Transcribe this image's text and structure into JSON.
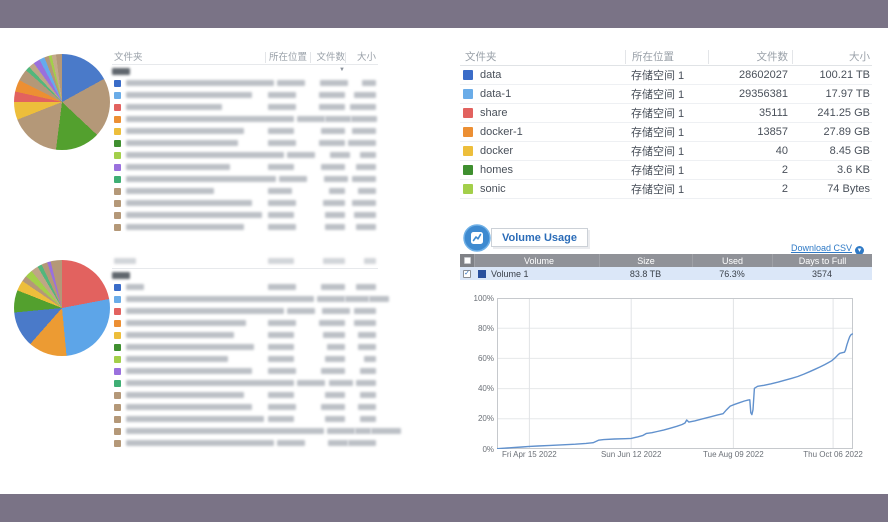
{
  "page": {
    "background": "#7a7386",
    "canvas": "#ffffff"
  },
  "left": {
    "table_top": {
      "headers": {
        "folder": "文件夹",
        "location": "所在位置",
        "files": "文件数",
        "size": "大小"
      },
      "sorted_by": "文件数",
      "sort_dir": "desc",
      "redacted": true,
      "rows": [
        {
          "icon_color": "#3a6cc8",
          "name_w": 148,
          "loc_w": 28,
          "files_w": 28,
          "size_w": 14
        },
        {
          "icon_color": "#6aace8",
          "name_w": 126,
          "loc_w": 28,
          "files_w": 26,
          "size_w": 22
        },
        {
          "icon_color": "#e2625f",
          "name_w": 96,
          "loc_w": 28,
          "files_w": 26,
          "size_w": 26
        },
        {
          "icon_color": "#ec8f33",
          "name_w": 168,
          "loc_w": 28,
          "files_w": 26,
          "size_w": 26
        },
        {
          "icon_color": "#edbe3b",
          "name_w": 118,
          "loc_w": 26,
          "files_w": 24,
          "size_w": 24
        },
        {
          "icon_color": "#3f8f2f",
          "name_w": 112,
          "loc_w": 28,
          "files_w": 26,
          "size_w": 28
        },
        {
          "icon_color": "#a3cf4a",
          "name_w": 158,
          "loc_w": 28,
          "files_w": 20,
          "size_w": 16
        },
        {
          "icon_color": "#9a70dd",
          "name_w": 104,
          "loc_w": 26,
          "files_w": 24,
          "size_w": 20
        },
        {
          "icon_color": "#3fae74",
          "name_w": 150,
          "loc_w": 28,
          "files_w": 24,
          "size_w": 24
        },
        {
          "icon_color": "#b49878",
          "name_w": 88,
          "loc_w": 24,
          "files_w": 16,
          "size_w": 18
        },
        {
          "icon_color": "#b49878",
          "name_w": 126,
          "loc_w": 28,
          "files_w": 22,
          "size_w": 24
        },
        {
          "icon_color": "#b49878",
          "name_w": 136,
          "loc_w": 26,
          "files_w": 20,
          "size_w": 22
        },
        {
          "icon_color": "#b49878",
          "name_w": 118,
          "loc_w": 28,
          "files_w": 20,
          "size_w": 20
        }
      ]
    },
    "table_bottom": {
      "header_redacted": true,
      "header_bar_widths": [
        22,
        26,
        22,
        12
      ],
      "redacted": true,
      "rows": [
        {
          "icon_color": "#3a6cc8",
          "name_w": 18,
          "loc_w": 28,
          "files_w": 24,
          "size_w": 20
        },
        {
          "icon_color": "#6aace8",
          "name_w": 188,
          "loc_w": 28,
          "files_w": 24,
          "size_w": 20
        },
        {
          "icon_color": "#e2625f",
          "name_w": 158,
          "loc_w": 28,
          "files_w": 28,
          "size_w": 22
        },
        {
          "icon_color": "#ec8f33",
          "name_w": 120,
          "loc_w": 28,
          "files_w": 26,
          "size_w": 22
        },
        {
          "icon_color": "#edbe3b",
          "name_w": 108,
          "loc_w": 26,
          "files_w": 22,
          "size_w": 18
        },
        {
          "icon_color": "#3f8f2f",
          "name_w": 128,
          "loc_w": 26,
          "files_w": 18,
          "size_w": 18
        },
        {
          "icon_color": "#a3cf4a",
          "name_w": 102,
          "loc_w": 26,
          "files_w": 20,
          "size_w": 12
        },
        {
          "icon_color": "#9a70dd",
          "name_w": 126,
          "loc_w": 28,
          "files_w": 24,
          "size_w": 16
        },
        {
          "icon_color": "#3fae74",
          "name_w": 168,
          "loc_w": 28,
          "files_w": 24,
          "size_w": 20
        },
        {
          "icon_color": "#b49878",
          "name_w": 118,
          "loc_w": 26,
          "files_w": 20,
          "size_w": 16
        },
        {
          "icon_color": "#b49878",
          "name_w": 126,
          "loc_w": 28,
          "files_w": 24,
          "size_w": 18
        },
        {
          "icon_color": "#b49878",
          "name_w": 138,
          "loc_w": 26,
          "files_w": 20,
          "size_w": 16
        },
        {
          "icon_color": "#b49878",
          "name_w": 198,
          "loc_w": 28,
          "files_w": 16,
          "size_w": 30
        },
        {
          "icon_color": "#b49878",
          "name_w": 148,
          "loc_w": 28,
          "files_w": 20,
          "size_w": 28
        }
      ]
    }
  },
  "right": {
    "folder_table": {
      "headers": {
        "folder": "文件夹",
        "location": "所在位置",
        "files": "文件数",
        "size": "大小"
      },
      "rows": [
        {
          "name": "data",
          "color": "#3a6cc8",
          "location": "存储空间 1",
          "files": "28602027",
          "size": "100.21 TB"
        },
        {
          "name": "data-1",
          "color": "#6aace8",
          "location": "存储空间 1",
          "files": "29356381",
          "size": "17.97 TB"
        },
        {
          "name": "share",
          "color": "#e2625f",
          "location": "存储空间 1",
          "files": "35111",
          "size": "241.25 GB"
        },
        {
          "name": "docker-1",
          "color": "#ec8f33",
          "location": "存储空间 1",
          "files": "13857",
          "size": "27.89 GB"
        },
        {
          "name": "docker",
          "color": "#edbe3b",
          "location": "存储空间 1",
          "files": "40",
          "size": "8.45 GB"
        },
        {
          "name": "homes",
          "color": "#3f8f2f",
          "location": "存储空间 1",
          "files": "2",
          "size": "3.6 KB"
        },
        {
          "name": "sonic",
          "color": "#a3cf4a",
          "location": "存储空间 1",
          "files": "2",
          "size": "74 Bytes"
        }
      ]
    },
    "volume_usage": {
      "title": "Volume Usage",
      "download_csv": "Download CSV",
      "table": {
        "headers": {
          "volume": "Volume",
          "size": "Size",
          "used": "Used",
          "days": "Days to Full"
        },
        "rows": [
          {
            "checked": true,
            "color": "#29509d",
            "name": "Volume 1",
            "size": "83.8 TB",
            "used": "76.3%",
            "days": "3574"
          }
        ]
      }
    }
  },
  "chart_data": [
    {
      "id": "pie-top",
      "type": "pie",
      "title": "",
      "colors": [
        "#4a7ac9",
        "#b49878",
        "#53a02e",
        "#b49878",
        "#edbe3b",
        "#e2625f",
        "#ec8f33",
        "#b49878",
        "#52b77c",
        "#bfa686",
        "#9a70dd",
        "#66aaed",
        "#b49878",
        "#a3cf4a",
        "#c3ab8a",
        "#b49878"
      ],
      "values": [
        17,
        20,
        15,
        17,
        6,
        3.5,
        4,
        4,
        1.5,
        2,
        2.2,
        1.8,
        1.5,
        1,
        1.5,
        2
      ]
    },
    {
      "id": "pie-bottom",
      "type": "pie",
      "title": "",
      "colors": [
        "#e2625f",
        "#5da5e8",
        "#ec9b33",
        "#4a7ac9",
        "#53a02e",
        "#edbe3b",
        "#b49878",
        "#a3cf4a",
        "#bfa686",
        "#52b77c",
        "#b49878",
        "#9a70dd",
        "#b49878"
      ],
      "values": [
        22,
        26.5,
        13,
        12,
        7.5,
        3.5,
        2,
        2.5,
        2.5,
        1.5,
        2,
        1.2,
        3.8
      ]
    },
    {
      "id": "volume-usage-line",
      "type": "line",
      "title": "",
      "xlabel": "",
      "ylabel": "",
      "ylim": [
        0,
        100
      ],
      "grid": true,
      "legend": "none",
      "yticks": [
        "0%",
        "20%",
        "40%",
        "60%",
        "80%",
        "100%"
      ],
      "xticks": [
        {
          "label": "Fri Apr 15 2022",
          "pos": 0.091
        },
        {
          "label": "Sun Jun 12 2022",
          "pos": 0.377
        },
        {
          "label": "Tue Aug 09 2022",
          "pos": 0.664
        },
        {
          "label": "Thu Oct 06 2022",
          "pos": 0.944
        }
      ],
      "series": [
        {
          "name": "Volume 1",
          "color": "#6191cd",
          "points": [
            [
              0.0,
              0.2
            ],
            [
              0.02,
              0.5
            ],
            [
              0.045,
              0.9
            ],
            [
              0.07,
              1.3
            ],
            [
              0.091,
              1.7
            ],
            [
              0.115,
              2.0
            ],
            [
              0.15,
              2.4
            ],
            [
              0.185,
              2.8
            ],
            [
              0.22,
              3.2
            ],
            [
              0.25,
              3.7
            ],
            [
              0.27,
              4.2
            ],
            [
              0.285,
              5.8
            ],
            [
              0.3,
              6.2
            ],
            [
              0.33,
              6.6
            ],
            [
              0.36,
              6.8
            ],
            [
              0.377,
              7.0
            ],
            [
              0.395,
              8.0
            ],
            [
              0.41,
              9.0
            ],
            [
              0.42,
              10.3
            ],
            [
              0.435,
              10.8
            ],
            [
              0.45,
              11.6
            ],
            [
              0.468,
              12.5
            ],
            [
              0.487,
              13.8
            ],
            [
              0.505,
              15.0
            ],
            [
              0.52,
              16.2
            ],
            [
              0.528,
              17.2
            ],
            [
              0.533,
              19.2
            ],
            [
              0.539,
              17.8
            ],
            [
              0.555,
              18.6
            ],
            [
              0.575,
              19.8
            ],
            [
              0.6,
              21.3
            ],
            [
              0.62,
              22.6
            ],
            [
              0.635,
              23.4
            ],
            [
              0.645,
              26.0
            ],
            [
              0.655,
              28.4
            ],
            [
              0.668,
              29.6
            ],
            [
              0.68,
              30.6
            ],
            [
              0.695,
              31.8
            ],
            [
              0.705,
              32.4
            ],
            [
              0.71,
              32.6
            ],
            [
              0.713,
              24.0
            ],
            [
              0.716,
              22.8
            ],
            [
              0.719,
              26.0
            ],
            [
              0.723,
              40.2
            ],
            [
              0.732,
              41.5
            ],
            [
              0.75,
              42.2
            ],
            [
              0.77,
              43.2
            ],
            [
              0.79,
              44.3
            ],
            [
              0.81,
              45.6
            ],
            [
              0.828,
              46.8
            ],
            [
              0.845,
              48.0
            ],
            [
              0.862,
              49.6
            ],
            [
              0.878,
              51.2
            ],
            [
              0.893,
              52.8
            ],
            [
              0.907,
              54.3
            ],
            [
              0.92,
              55.8
            ],
            [
              0.931,
              57.2
            ],
            [
              0.94,
              58.4
            ],
            [
              0.947,
              59.8
            ],
            [
              0.953,
              61.2
            ],
            [
              0.958,
              62.4
            ],
            [
              0.963,
              63.4
            ],
            [
              0.97,
              63.8
            ],
            [
              0.976,
              64.1
            ],
            [
              0.979,
              65.5
            ],
            [
              0.983,
              69.0
            ],
            [
              0.987,
              72.0
            ],
            [
              0.991,
              74.5
            ],
            [
              0.995,
              75.8
            ],
            [
              1.0,
              76.3
            ]
          ]
        }
      ]
    }
  ]
}
